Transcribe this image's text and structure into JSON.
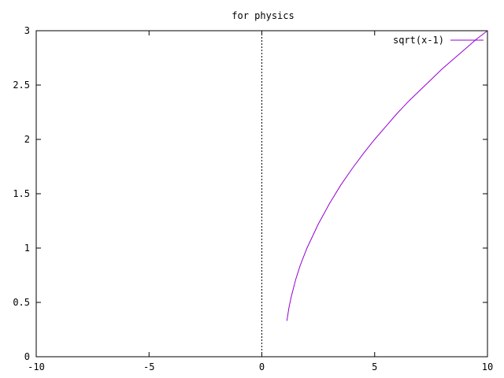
{
  "chart_data": {
    "type": "line",
    "title": "for physics",
    "xlabel": "",
    "ylabel": "",
    "xlim": [
      -10,
      10
    ],
    "ylim": [
      0,
      3
    ],
    "xticks": [
      -10,
      -5,
      0,
      5,
      10
    ],
    "yticks": [
      0,
      0.5,
      1,
      1.5,
      2,
      2.5,
      3
    ],
    "xtick_labels": [
      "-10",
      "-5",
      "0",
      "5",
      "10"
    ],
    "ytick_labels": [
      "0",
      "0.5",
      "1",
      "1.5",
      "2",
      "2.5",
      "3"
    ],
    "grid": false,
    "zero_axis": "x=0 dashed vertical line",
    "legend_position": "top-right",
    "series": [
      {
        "name": "sqrt(x-1)",
        "color": "#9400d3",
        "x": [
          1.11,
          1.2,
          1.3,
          1.5,
          1.7,
          2.0,
          2.5,
          3.0,
          3.5,
          4.0,
          4.5,
          5.0,
          5.5,
          6.0,
          6.5,
          7.0,
          7.5,
          8.0,
          8.5,
          9.0,
          9.5,
          10.0
        ],
        "y": [
          0.33,
          0.45,
          0.55,
          0.71,
          0.84,
          1.0,
          1.22,
          1.41,
          1.58,
          1.73,
          1.87,
          2.0,
          2.12,
          2.24,
          2.35,
          2.45,
          2.55,
          2.65,
          2.74,
          2.83,
          2.92,
          3.0
        ]
      }
    ]
  }
}
